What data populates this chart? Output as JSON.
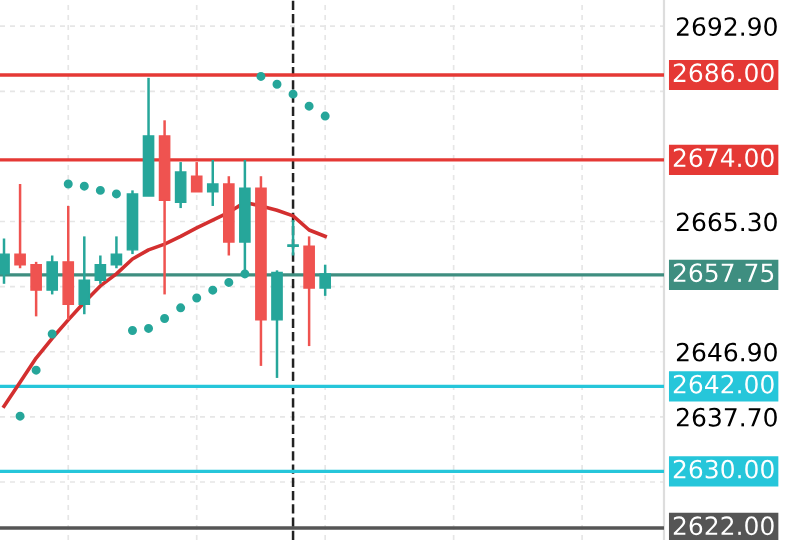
{
  "chart_data": {
    "type": "candlestick",
    "categories": [
      null,
      null,
      null,
      null,
      null,
      null,
      null,
      null,
      null,
      null,
      null,
      null,
      null,
      null,
      null,
      null,
      null,
      null,
      null,
      null,
      null,
      null,
      null,
      null,
      null,
      null,
      null,
      null,
      null,
      null,
      null,
      null,
      null,
      null,
      null,
      null,
      null,
      null,
      null,
      null,
      null,
      null
    ],
    "ohlc": [
      [
        2657.9,
        2662.9,
        2656.5,
        2660.7
      ],
      [
        2660.7,
        2670.6,
        2658.7,
        2659.2
      ],
      [
        2659.2,
        2659.6,
        2651.9,
        2655.6
      ],
      [
        2655.6,
        2660.5,
        2655.0,
        2659.6
      ],
      [
        2659.6,
        2667.5,
        2651.4,
        2653.6
      ],
      [
        2653.6,
        2663.2,
        2652.2,
        2657.0
      ],
      [
        2657.0,
        2660.5,
        2656.5,
        2659.2
      ],
      [
        2659.2,
        2663.2,
        2658.7,
        2660.7
      ],
      [
        2661.3,
        2669.7,
        2660.7,
        2669.2
      ],
      [
        2668.9,
        2685.6,
        2668.9,
        2677.4
      ],
      [
        2677.4,
        2679.6,
        2655.0,
        2668.3
      ],
      [
        2668.0,
        2673.7,
        2667.2,
        2672.3
      ],
      [
        2671.7,
        2673.7,
        2669.5,
        2669.5
      ],
      [
        2669.5,
        2674.0,
        2667.5,
        2670.6
      ],
      [
        2670.6,
        2671.7,
        2660.5,
        2662.4
      ],
      [
        2662.4,
        2674.0,
        2658.0,
        2670.0
      ],
      [
        2670.0,
        2671.7,
        2644.9,
        2651.4
      ],
      [
        2651.4,
        2658.4,
        2643.2,
        2658.1
      ],
      [
        2661.8,
        2665.5,
        2660.5,
        2662.0
      ],
      [
        2661.8,
        2663.2,
        2647.7,
        2655.9
      ],
      [
        2655.9,
        2659.2,
        2654.8,
        2657.9
      ],
      null,
      null,
      null,
      null,
      null,
      null,
      null,
      null,
      null,
      null,
      null,
      null,
      null,
      null,
      null,
      null,
      null,
      null,
      null,
      null,
      null
    ],
    "colors": [
      "#26a69a",
      "#ef5350",
      "#ef5350",
      "#26a69a",
      "#ef5350",
      "#26a69a",
      "#26a69a",
      "#26a69a",
      "#26a69a",
      "#26a69a",
      "#ef5350",
      "#26a69a",
      "#ef5350",
      "#26a69a",
      "#ef5350",
      "#26a69a",
      "#ef5350",
      "#26a69a",
      "#26a69a",
      "#ef5350",
      "#26a69a",
      null,
      null,
      null,
      null,
      null,
      null,
      null,
      null,
      null,
      null,
      null,
      null,
      null,
      null,
      null,
      null,
      null,
      null,
      null,
      null,
      null
    ],
    "series": [
      {
        "type": "line",
        "color": "#d32f2f",
        "values": [
          2639.2,
          2642.6,
          2646.0,
          2648.8,
          2651.4,
          2653.9,
          2656.2,
          2657.9,
          2660.0,
          2661.3,
          2662.1,
          2663.2,
          2664.4,
          2665.5,
          2666.6,
          2668.0,
          2667.5,
          2666.9,
          2666.1,
          2664.1,
          2663.2,
          null,
          null,
          null,
          null,
          null,
          null,
          null,
          null,
          null,
          null,
          null,
          null,
          null,
          null,
          null,
          null,
          null,
          null,
          null,
          null,
          null
        ]
      },
      {
        "type": "scatter",
        "color": "#26a69a",
        "marker": "circle",
        "values": [
          null,
          2637.8,
          2644.3,
          2649.4,
          2670.6,
          2670.3,
          2669.7,
          2669.2,
          2649.9,
          2650.2,
          2651.6,
          2653.1,
          2654.5,
          2655.6,
          2656.7,
          2657.9,
          2685.8,
          2684.7,
          2683.3,
          2681.6,
          2680.2,
          null,
          null,
          null,
          null,
          null,
          null,
          null,
          null,
          null,
          null,
          null,
          null,
          null,
          null,
          null,
          null,
          null,
          null,
          null,
          null,
          null
        ]
      }
    ],
    "ylim": [
      2620.3,
      2696.6
    ],
    "yticks": [
      {
        "value": 2692.9,
        "label": "2692.90"
      },
      {
        "value": 2683.7,
        "label": null
      },
      {
        "value": 2665.3,
        "label": "2665.30"
      },
      {
        "value": 2656.1,
        "label": null
      },
      {
        "value": 2646.9,
        "label": "2646.90"
      },
      {
        "value": 2637.7,
        "label": "2637.70"
      },
      {
        "value": 2628.5,
        "label": null
      }
    ],
    "grid": true,
    "tick_labels": "y",
    "ref_lines": [
      {
        "axis": "y",
        "value": 2686.0,
        "label": "2686.00",
        "color": "#e53935"
      },
      {
        "axis": "y",
        "value": 2674.0,
        "label": "2674.00",
        "color": "#e53935"
      },
      {
        "axis": "y",
        "value": 2657.75,
        "label": "2657.75",
        "color": "#3e8e80"
      },
      {
        "axis": "y",
        "value": 2642.0,
        "label": "2642.00",
        "color": "#26c6da"
      },
      {
        "axis": "y",
        "value": 2630.0,
        "label": "2630.00",
        "color": "#26c6da"
      },
      {
        "axis": "y",
        "value": 2622.0,
        "label": "2622.00",
        "color": "#555555"
      }
    ]
  }
}
